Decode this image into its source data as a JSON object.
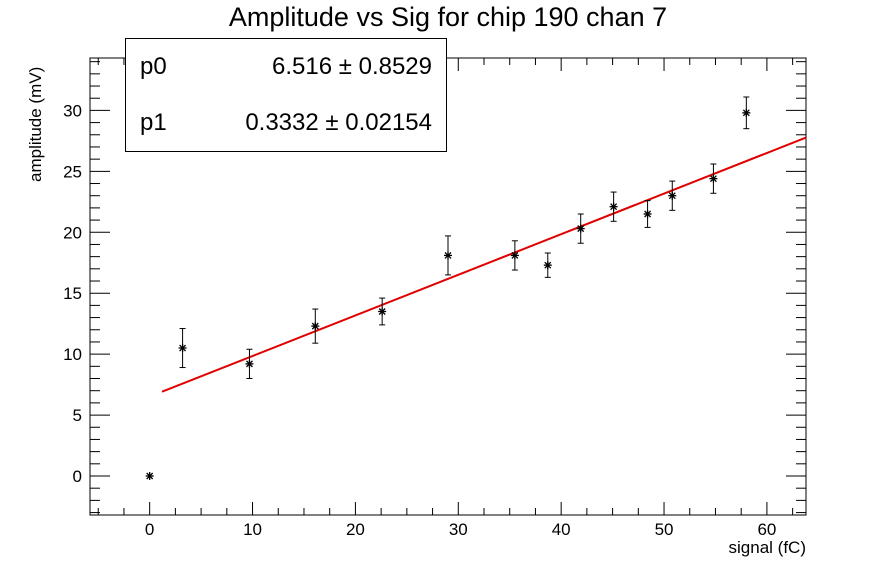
{
  "title": "Amplitude vs Sig for chip 190 chan 7",
  "stats": [
    {
      "name": "p0",
      "value": "6.516",
      "error": "0.8529"
    },
    {
      "name": "p1",
      "value": "0.3332",
      "error": "0.02154"
    }
  ],
  "chart_data": {
    "type": "scatter",
    "title": "Amplitude vs Sig for chip 190 chan 7",
    "xlabel": "signal (fC)",
    "ylabel": "amplitude (mV)",
    "xlim": [
      -5.8,
      63.8
    ],
    "ylim": [
      -3.2,
      34.3
    ],
    "xticks": [
      0,
      10,
      20,
      30,
      40,
      50,
      60
    ],
    "yticks": [
      0,
      5,
      10,
      15,
      20,
      25,
      30
    ],
    "points": [
      {
        "x": 0.0,
        "y": 0.0,
        "err": 0.0
      },
      {
        "x": 3.2,
        "y": 10.5,
        "err": 1.6
      },
      {
        "x": 9.7,
        "y": 9.2,
        "err": 1.2
      },
      {
        "x": 16.1,
        "y": 12.3,
        "err": 1.4
      },
      {
        "x": 22.6,
        "y": 13.5,
        "err": 1.1
      },
      {
        "x": 29.0,
        "y": 18.1,
        "err": 1.6
      },
      {
        "x": 35.5,
        "y": 18.1,
        "err": 1.2
      },
      {
        "x": 38.7,
        "y": 17.3,
        "err": 1.0
      },
      {
        "x": 41.9,
        "y": 20.3,
        "err": 1.2
      },
      {
        "x": 45.1,
        "y": 22.1,
        "err": 1.2
      },
      {
        "x": 48.4,
        "y": 21.5,
        "err": 1.1
      },
      {
        "x": 50.8,
        "y": 23.0,
        "err": 1.2
      },
      {
        "x": 54.8,
        "y": 24.4,
        "err": 1.2
      },
      {
        "x": 58.0,
        "y": 29.8,
        "err": 1.3
      }
    ],
    "fit": {
      "p0": 6.516,
      "p1": 0.3332,
      "x_range": [
        1.2,
        63.8
      ],
      "color": "#e00000"
    },
    "grid": false
  }
}
